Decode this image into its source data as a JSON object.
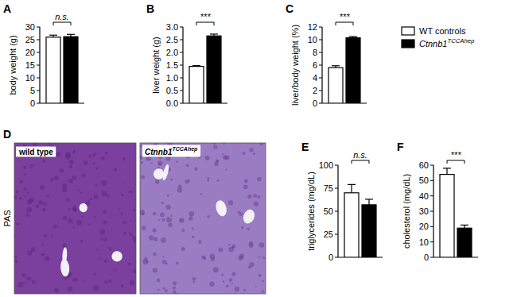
{
  "chart_data": [
    {
      "type": "bar",
      "panel": "A",
      "y_label": "body weight (g)",
      "categories": [
        null
      ],
      "series": [
        {
          "color": "#ffffff",
          "values": [
            26
          ],
          "errors": [
            0.8
          ]
        },
        {
          "color": "#000000",
          "values": [
            26.2
          ],
          "errors": [
            0.9
          ]
        }
      ],
      "ylim": [
        0,
        30
      ],
      "yticks": [
        0,
        5,
        10,
        15,
        20,
        25,
        30
      ],
      "significance": "n.s."
    },
    {
      "type": "bar",
      "panel": "B",
      "y_label": "liver weight (g)",
      "categories": [
        null
      ],
      "series": [
        {
          "color": "#ffffff",
          "values": [
            1.45
          ],
          "errors": [
            0.03
          ]
        },
        {
          "color": "#000000",
          "values": [
            2.65
          ],
          "errors": [
            0.07
          ]
        }
      ],
      "ylim": [
        0,
        3
      ],
      "yticks": [
        {
          "value": 0,
          "label": "0.0"
        },
        0.5,
        {
          "value": 1,
          "label": "1.0"
        },
        1.5,
        {
          "value": 2,
          "label": "2.0"
        },
        2.5,
        {
          "value": 3,
          "label": "3.0"
        }
      ],
      "significance": "***"
    },
    {
      "type": "bar",
      "panel": "C",
      "y_label": "liver/body weight (%)",
      "categories": [
        null
      ],
      "series": [
        {
          "name": "WT controls",
          "color": "#ffffff",
          "values": [
            5.6
          ],
          "errors": [
            0.3
          ]
        },
        {
          "name": "Ctnnb1TCCAhep",
          "color": "#000000",
          "values": [
            10.3
          ],
          "errors": [
            0.2
          ]
        }
      ],
      "ylim": [
        0,
        12
      ],
      "yticks": [
        0,
        2,
        4,
        6,
        8,
        10,
        12
      ],
      "significance": "***",
      "legend": "right"
    },
    {
      "type": "bar",
      "panel": "E",
      "y_label": "triglycerides (mg/dL)",
      "categories": [
        null
      ],
      "series": [
        {
          "color": "#ffffff",
          "values": [
            70
          ],
          "errors": [
            9
          ]
        },
        {
          "color": "#000000",
          "values": [
            57
          ],
          "errors": [
            6
          ]
        }
      ],
      "ylim": [
        0,
        100
      ],
      "yticks": [
        0,
        25,
        50,
        75,
        100
      ],
      "significance": "n.s."
    },
    {
      "type": "bar",
      "panel": "F",
      "y_label": "cholesterol (mg/dL)",
      "categories": [
        null
      ],
      "series": [
        {
          "color": "#ffffff",
          "values": [
            54
          ],
          "errors": [
            4
          ]
        },
        {
          "color": "#000000",
          "values": [
            19
          ],
          "errors": [
            2
          ]
        }
      ],
      "ylim": [
        0,
        60
      ],
      "yticks": [
        0,
        10,
        20,
        30,
        40,
        50,
        60
      ],
      "significance": "***"
    }
  ],
  "image_panel": {
    "panel": "D",
    "stain": "PAS",
    "images": [
      "wild type",
      "Ctnnb1TCCAhep"
    ]
  }
}
